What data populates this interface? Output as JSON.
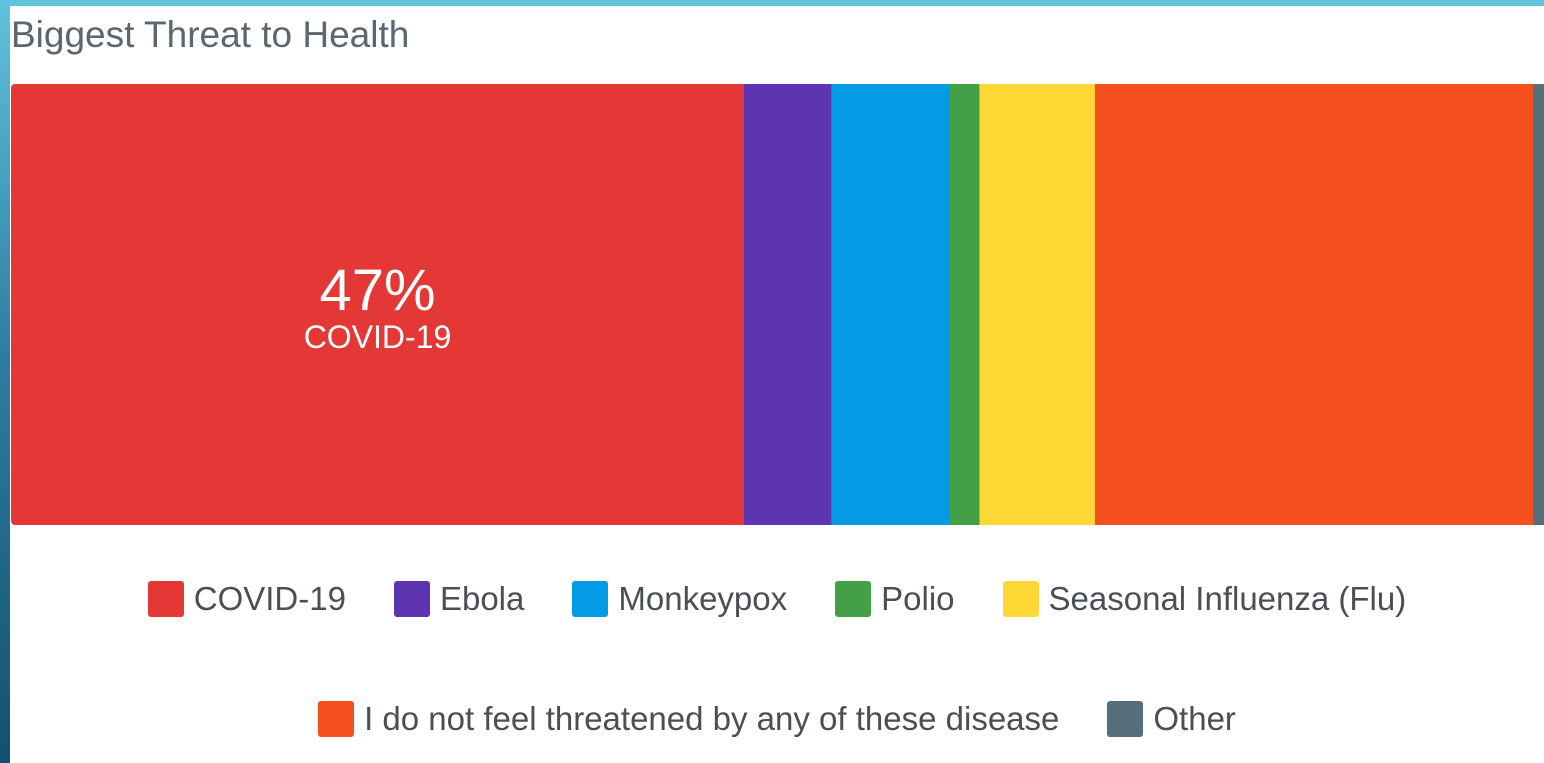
{
  "chart_data": {
    "type": "bar",
    "stacked": true,
    "orientation": "horizontal",
    "title": "Biggest Threat to Health",
    "unit": "%",
    "categories": [
      "COVID-19",
      "Ebola",
      "Monkeypox",
      "Polio",
      "Seasonal Influenza (Flu)",
      "I do not feel threatened by any of these disease",
      "Other"
    ],
    "values": [
      47,
      5.6,
      7.6,
      1.9,
      7.4,
      28.1,
      0.7
    ],
    "colors": [
      "#e33836",
      "#5e35b1",
      "#039be5",
      "#43a047",
      "#fdd835",
      "#f4511e",
      "#546e7a"
    ],
    "data_labels": [
      {
        "category_index": 0,
        "value_text": "47%",
        "category_text": "COVID-19"
      }
    ],
    "legend": {
      "placement": "bottom",
      "rows": [
        [
          0,
          1,
          2,
          3,
          4
        ],
        [
          5,
          6
        ]
      ]
    },
    "grid": false
  }
}
